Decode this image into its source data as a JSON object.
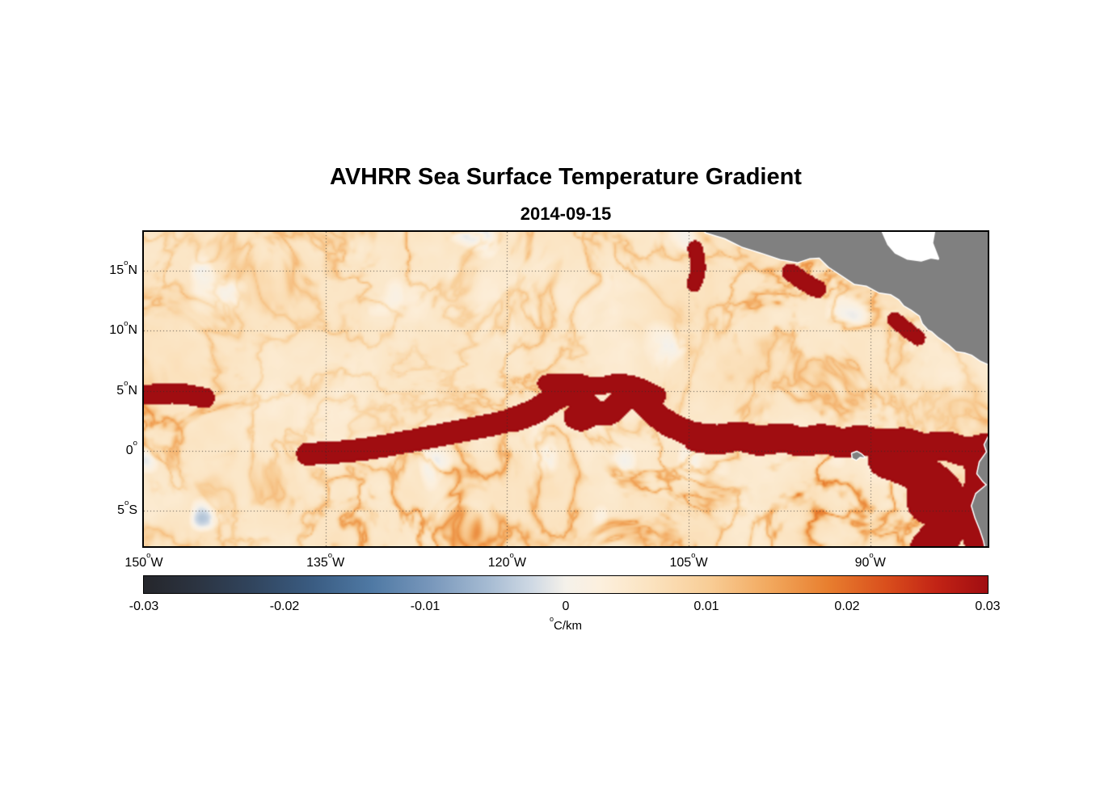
{
  "chart_data": {
    "type": "heatmap",
    "title": "AVHRR Sea Surface Temperature Gradient",
    "subtitle": "2014-09-15",
    "degree_symbol": "o",
    "extent": {
      "lon_min": -150,
      "lon_max": -80.3,
      "lat_min": -7.96,
      "lat_max": 18.23
    },
    "x_axis": {
      "ticks": [
        {
          "deg": "150",
          "hemi": "W",
          "lon": -150
        },
        {
          "deg": "135",
          "hemi": "W",
          "lon": -135
        },
        {
          "deg": "120",
          "hemi": "W",
          "lon": -120
        },
        {
          "deg": "105",
          "hemi": "W",
          "lon": -105
        },
        {
          "deg": "90",
          "hemi": "W",
          "lon": -90
        }
      ]
    },
    "y_axis": {
      "ticks": [
        {
          "deg": "15",
          "hemi": "N",
          "lat": 15
        },
        {
          "deg": "10",
          "hemi": "N",
          "lat": 10
        },
        {
          "deg": "5",
          "hemi": "N",
          "lat": 5
        },
        {
          "deg": "0",
          "hemi": "",
          "lat": 0
        },
        {
          "deg": "5",
          "hemi": "S",
          "lat": -5
        }
      ]
    },
    "grid": {
      "lats": [
        15,
        10,
        5,
        0,
        -5
      ],
      "lons": [
        -135,
        -120,
        -105,
        -90
      ]
    },
    "colormap": {
      "min": -0.03,
      "max": 0.03,
      "stops": [
        [
          0.0,
          "#25262b"
        ],
        [
          0.06,
          "#2b3340"
        ],
        [
          0.13,
          "#31455e"
        ],
        [
          0.2,
          "#3a5c82"
        ],
        [
          0.27,
          "#4f79a4"
        ],
        [
          0.34,
          "#7897bb"
        ],
        [
          0.41,
          "#a7bcd3"
        ],
        [
          0.46,
          "#cfd9e4"
        ],
        [
          0.5,
          "#f5f1ea"
        ],
        [
          0.54,
          "#fcf0de"
        ],
        [
          0.6,
          "#fbe3c0"
        ],
        [
          0.67,
          "#f8cd96"
        ],
        [
          0.74,
          "#f2a95f"
        ],
        [
          0.81,
          "#e87f2f"
        ],
        [
          0.88,
          "#d94e1c"
        ],
        [
          0.94,
          "#c22315"
        ],
        [
          1.0,
          "#a00d11"
        ]
      ]
    },
    "colorbar": {
      "ticks": [
        "-0.03",
        "-0.02",
        "-0.01",
        "0",
        "0.01",
        "0.02",
        "0.03"
      ],
      "tick_values": [
        -0.03,
        -0.02,
        -0.01,
        0,
        0.01,
        0.02,
        0.03
      ],
      "unit_sup": "o",
      "unit_text": "C/km"
    },
    "field": {
      "seed": 7,
      "base": 0.0028,
      "base_var": 0.0045,
      "filament": 0.017,
      "front_peak": 0.032
    },
    "fronts": [
      {
        "name": "west-equatorial-band",
        "width": 9,
        "strength": 0.5,
        "points": [
          [
            -136.5,
            -0.3
          ],
          [
            -133,
            -0.1
          ],
          [
            -130,
            0.4
          ],
          [
            -127,
            1.0
          ],
          [
            -124,
            1.6
          ],
          [
            -121.5,
            2.1
          ],
          [
            -119.5,
            2.6
          ]
        ]
      },
      {
        "name": "tropical-instability-wave-front",
        "width": 10,
        "strength": 0.8,
        "points": [
          [
            -119.5,
            2.6
          ],
          [
            -117.8,
            3.1
          ],
          [
            -116.3,
            4.3
          ],
          [
            -115.0,
            4.9
          ],
          [
            -113.9,
            4.3
          ],
          [
            -112.9,
            3.2
          ],
          [
            -111.7,
            3.0
          ],
          [
            -110.7,
            4.0
          ],
          [
            -109.9,
            4.8
          ],
          [
            -108.9,
            4.3
          ],
          [
            -107.9,
            3.1
          ],
          [
            -106.7,
            2.2
          ],
          [
            -105.3,
            1.6
          ],
          [
            -104.3,
            1.1
          ]
        ]
      },
      {
        "name": "eastern-equatorial-front",
        "width": 12,
        "strength": 1.0,
        "points": [
          [
            -104.3,
            1.1
          ],
          [
            -102.6,
            0.8
          ],
          [
            -100.9,
            1.3
          ],
          [
            -99.1,
            0.7
          ],
          [
            -97.3,
            1.2
          ],
          [
            -95.6,
            0.6
          ],
          [
            -93.9,
            1.1
          ],
          [
            -92.3,
            0.5
          ],
          [
            -90.9,
            1.0
          ],
          [
            -89.1,
            0.4
          ],
          [
            -87.3,
            0.8
          ],
          [
            -85.6,
            0.1
          ],
          [
            -83.9,
            0.5
          ],
          [
            -82.1,
            -0.2
          ],
          [
            -80.5,
            0.2
          ]
        ]
      },
      {
        "name": "tiw-northern-arcs",
        "width": 7,
        "strength": 0.5,
        "points": [
          [
            -116.8,
            5.6
          ],
          [
            -114.6,
            5.9
          ],
          [
            -112.6,
            5.2
          ],
          [
            -111.0,
            5.8
          ],
          [
            -109.2,
            5.4
          ],
          [
            -107.6,
            4.6
          ]
        ]
      },
      {
        "name": "tiw-eddy-loop",
        "width": 6,
        "strength": 0.55,
        "points": [
          [
            -113.6,
            3.5
          ],
          [
            -112.9,
            2.7
          ],
          [
            -113.9,
            2.1
          ],
          [
            -114.9,
            2.7
          ],
          [
            -114.4,
            3.4
          ],
          [
            -113.6,
            3.5
          ]
        ]
      },
      {
        "name": "peru-offshore-front",
        "width": 16,
        "strength": 0.95,
        "points": [
          [
            -88.6,
            -0.7
          ],
          [
            -86.9,
            -1.3
          ],
          [
            -85.3,
            -2.3
          ],
          [
            -84.1,
            -3.3
          ],
          [
            -83.3,
            -4.7
          ],
          [
            -83.5,
            -6.1
          ],
          [
            -84.3,
            -7.3
          ],
          [
            -85.1,
            -8.2
          ]
        ]
      },
      {
        "name": "peru-eddy-ring",
        "width": 8,
        "strength": 0.7,
        "points": [
          [
            -85.9,
            -2.9
          ],
          [
            -84.7,
            -2.5
          ],
          [
            -83.9,
            -3.3
          ],
          [
            -84.1,
            -4.7
          ],
          [
            -85.1,
            -5.5
          ],
          [
            -86.1,
            -4.9
          ],
          [
            -86.3,
            -3.7
          ],
          [
            -85.9,
            -2.9
          ]
        ]
      },
      {
        "name": "south-america-coastal-front",
        "width": 10,
        "strength": 0.9,
        "points": [
          [
            -81.3,
            -1.1
          ],
          [
            -80.9,
            -2.5
          ],
          [
            -81.9,
            -4.1
          ],
          [
            -82.0,
            -5.7
          ],
          [
            -81.4,
            -7.1
          ],
          [
            -81.0,
            -8.4
          ]
        ]
      },
      {
        "name": "west-5n-band",
        "width": 8,
        "strength": 0.45,
        "points": [
          [
            -150.5,
            4.6
          ],
          [
            -147.5,
            4.9
          ],
          [
            -145.0,
            4.4
          ]
        ]
      },
      {
        "name": "tehuantepec-filament",
        "width": 7,
        "strength": 0.5,
        "points": [
          [
            -96.6,
            14.9
          ],
          [
            -95.4,
            14.0
          ],
          [
            -94.4,
            13.5
          ]
        ]
      },
      {
        "name": "papagayo-filament",
        "width": 6,
        "strength": 0.5,
        "points": [
          [
            -88.0,
            10.9
          ],
          [
            -87.0,
            10.1
          ],
          [
            -86.1,
            9.4
          ]
        ]
      },
      {
        "name": "105w-filament",
        "width": 6,
        "strength": 0.5,
        "points": [
          [
            -104.5,
            16.9
          ],
          [
            -104.1,
            15.4
          ],
          [
            -104.6,
            13.9
          ]
        ]
      }
    ],
    "land": {
      "color": "#808080",
      "outline": "#ffffff",
      "void_color": "#ffffff",
      "polygons": [
        {
          "name": "central-america",
          "kind": "land",
          "points": [
            [
              -104.0,
              19.5
            ],
            [
              -103.6,
              18.2
            ],
            [
              -102.0,
              17.7
            ],
            [
              -100.6,
              17.0
            ],
            [
              -99.0,
              16.5
            ],
            [
              -97.4,
              15.95
            ],
            [
              -96.0,
              15.7
            ],
            [
              -95.0,
              16.05
            ],
            [
              -94.2,
              16.1
            ],
            [
              -93.4,
              15.3
            ],
            [
              -92.4,
              14.65
            ],
            [
              -91.3,
              13.9
            ],
            [
              -90.3,
              13.75
            ],
            [
              -89.3,
              13.2
            ],
            [
              -88.3,
              13.05
            ],
            [
              -87.6,
              12.6
            ],
            [
              -87.2,
              12.1
            ],
            [
              -86.6,
              11.75
            ],
            [
              -85.9,
              11.25
            ],
            [
              -85.65,
              10.6
            ],
            [
              -85.2,
              10.1
            ],
            [
              -84.9,
              9.95
            ],
            [
              -84.4,
              9.5
            ],
            [
              -83.5,
              8.85
            ],
            [
              -82.9,
              8.3
            ],
            [
              -82.2,
              8.2
            ],
            [
              -81.6,
              8.0
            ],
            [
              -80.9,
              7.5
            ],
            [
              -80.2,
              7.2
            ],
            [
              -79.4,
              7.3
            ],
            [
              -78.5,
              7.0
            ],
            [
              -77.0,
              8.0
            ],
            [
              -77.0,
              19.5
            ]
          ]
        },
        {
          "name": "caribbean-gulf-of-honduras",
          "kind": "water",
          "points": [
            [
              -89.3,
              19.0
            ],
            [
              -88.5,
              17.2
            ],
            [
              -87.9,
              16.5
            ],
            [
              -86.9,
              16.0
            ],
            [
              -85.8,
              15.85
            ],
            [
              -85.0,
              16.1
            ],
            [
              -84.4,
              16.0
            ],
            [
              -84.9,
              17.3
            ],
            [
              -84.6,
              19.0
            ]
          ]
        },
        {
          "name": "south-america",
          "kind": "land",
          "points": [
            [
              -79.6,
              2.5
            ],
            [
              -80.2,
              1.2
            ],
            [
              -80.55,
              0.5
            ],
            [
              -80.35,
              -0.1
            ],
            [
              -80.95,
              -0.95
            ],
            [
              -81.15,
              -1.9
            ],
            [
              -80.7,
              -2.5
            ],
            [
              -80.35,
              -2.85
            ],
            [
              -81.25,
              -3.6
            ],
            [
              -81.6,
              -4.6
            ],
            [
              -81.3,
              -5.6
            ],
            [
              -80.9,
              -6.6
            ],
            [
              -80.6,
              -7.5
            ],
            [
              -80.4,
              -8.5
            ],
            [
              -76.0,
              -9.0
            ],
            [
              -76.0,
              3.0
            ]
          ]
        },
        {
          "name": "galapagos-islands",
          "kind": "land",
          "points": [
            [
              -91.5,
              -0.25
            ],
            [
              -91.1,
              -0.1
            ],
            [
              -90.75,
              -0.3
            ],
            [
              -90.5,
              -0.55
            ],
            [
              -90.85,
              -0.5
            ],
            [
              -91.15,
              -0.75
            ],
            [
              -91.45,
              -0.6
            ]
          ]
        }
      ]
    }
  }
}
